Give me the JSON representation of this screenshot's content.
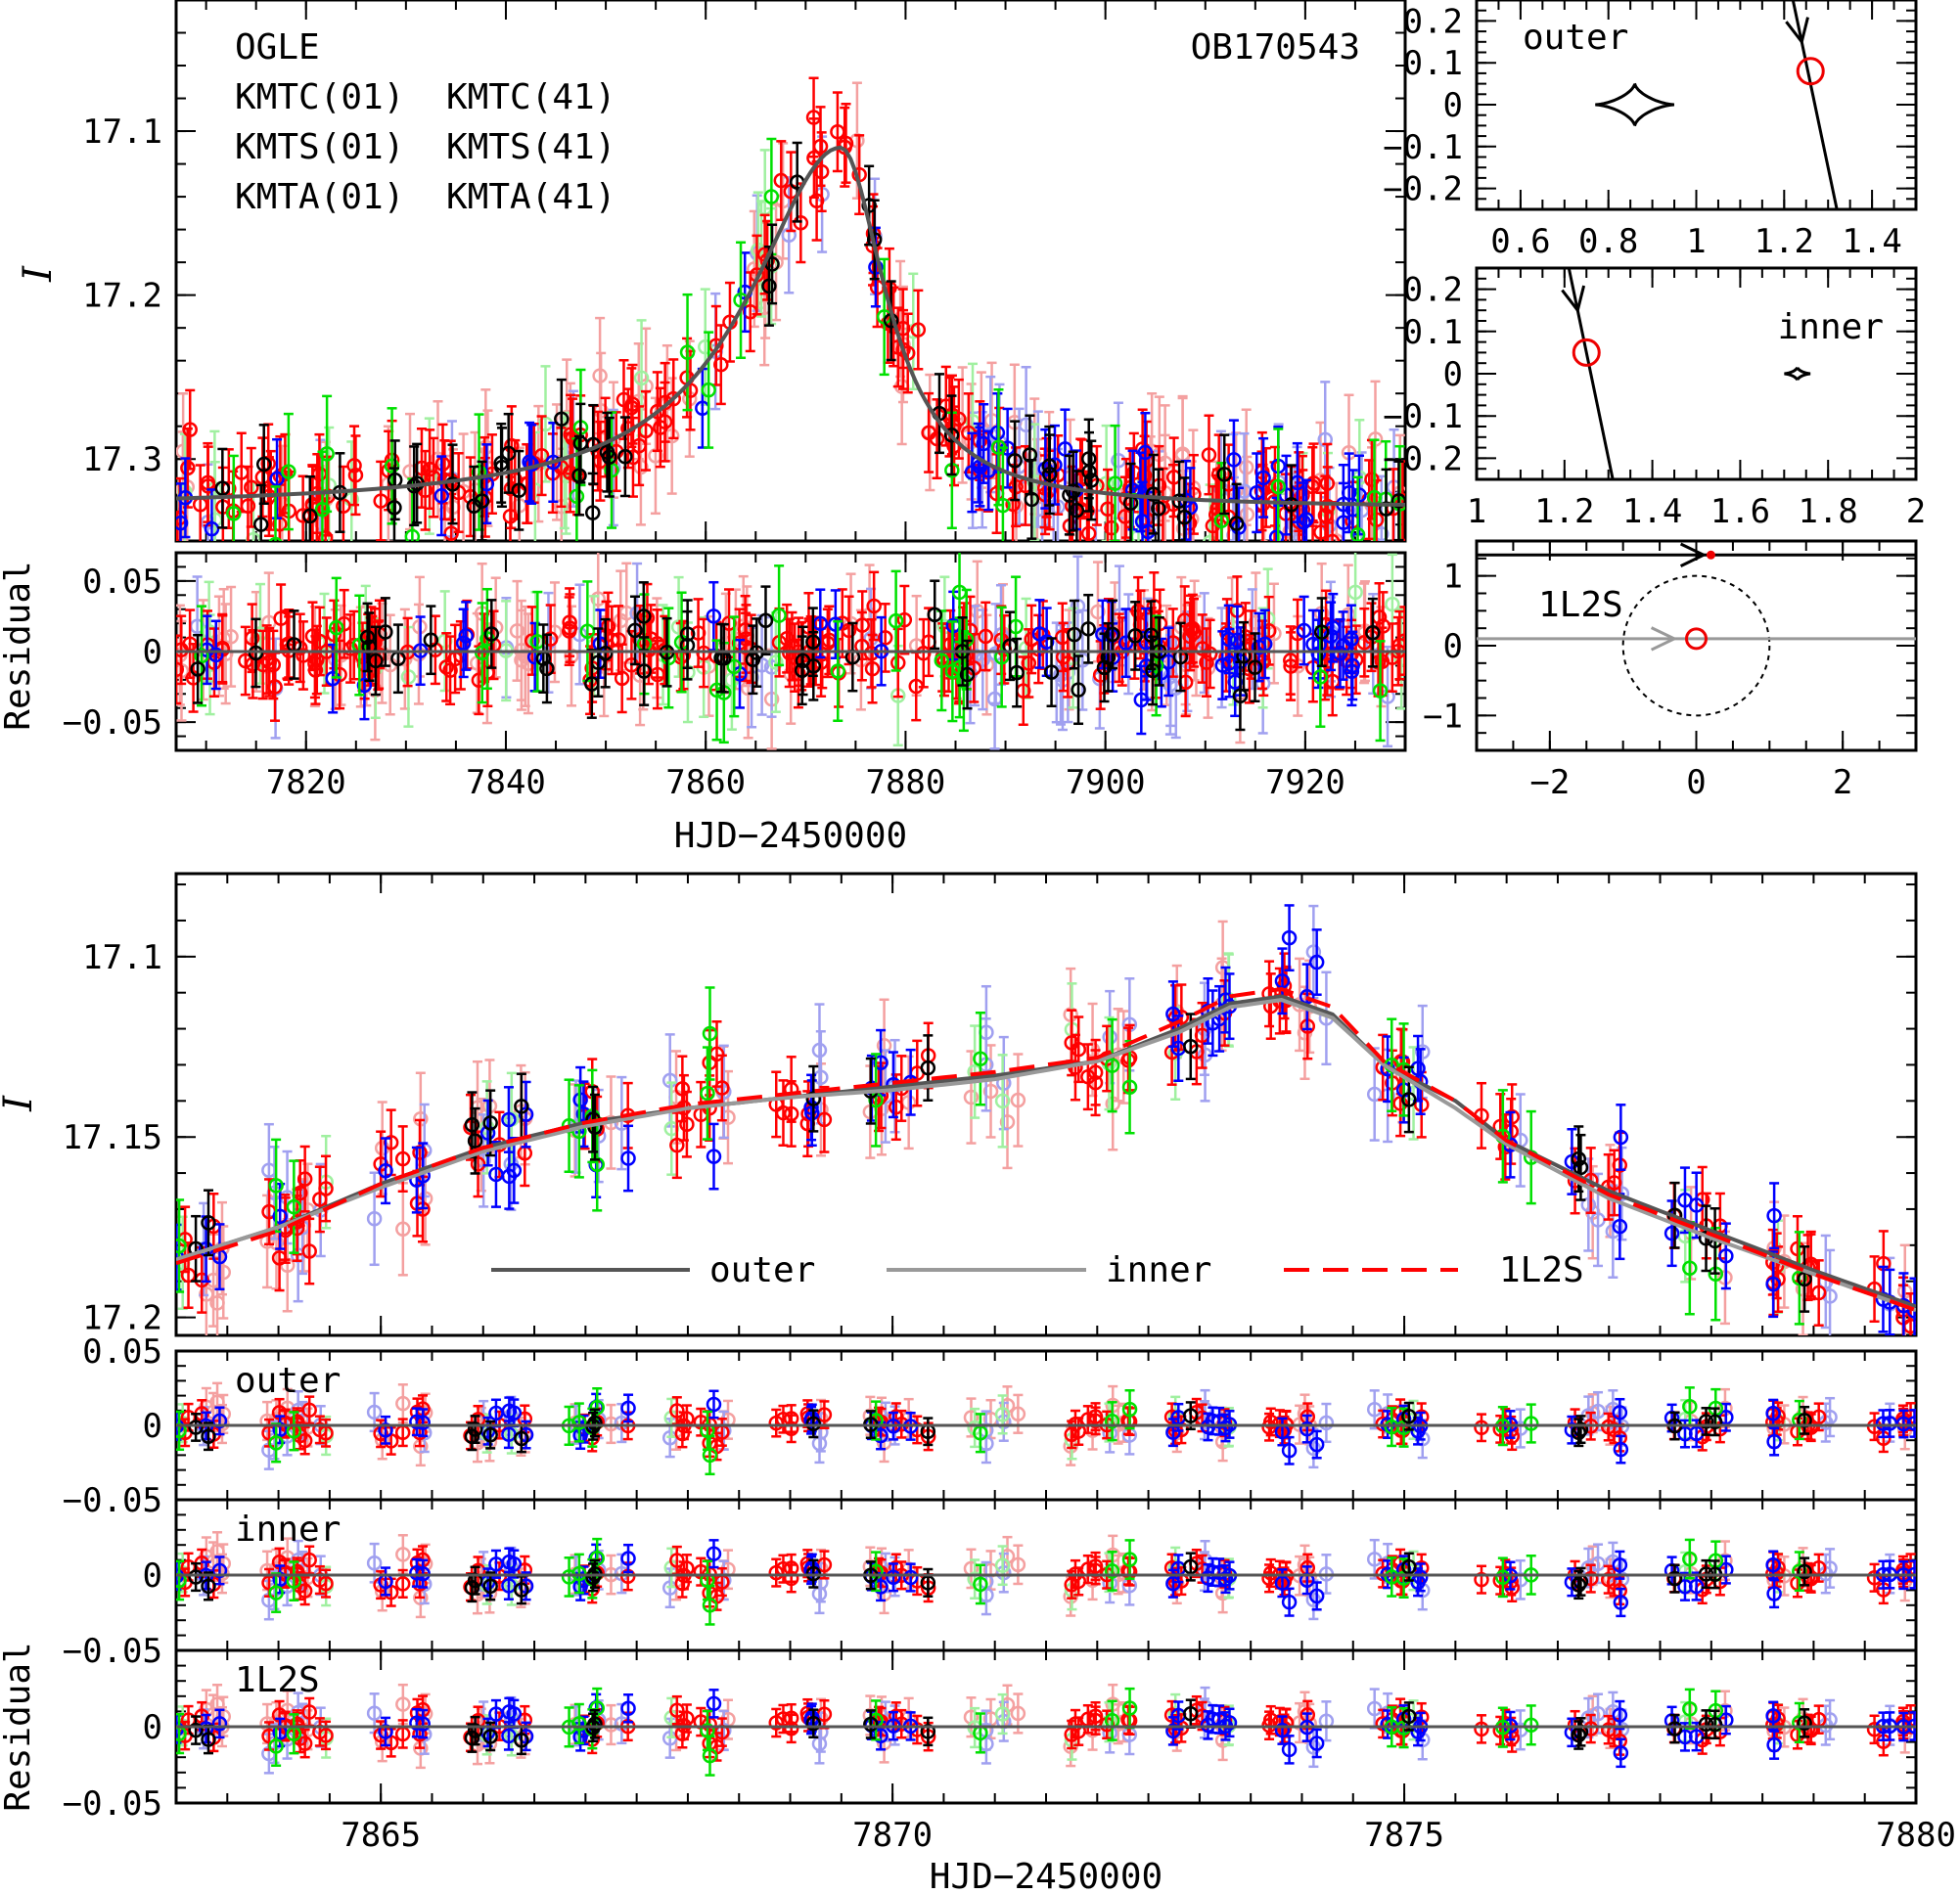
{
  "chart_data": [
    {
      "id": "top-lightcurve",
      "type": "scatter",
      "label": "OB170543",
      "ylabel": "I",
      "xlim": [
        7807,
        7930
      ],
      "ylim": [
        17.35,
        17.02
      ],
      "xticks": [
        7820,
        7840,
        7860,
        7880,
        7900,
        7920
      ],
      "yticks": [
        17.1,
        17.2,
        17.3
      ],
      "legend": [
        "OGLE",
        "KMTC(01)",
        "KMTC(41)",
        "KMTS(01)",
        "KMTS(41)",
        "KMTA(01)",
        "KMTA(41)"
      ],
      "model": {
        "t0": 7873.5,
        "peak": 17.11,
        "base": 17.33,
        "tE_rise": 14,
        "tE_fall": 7
      }
    },
    {
      "id": "top-residual",
      "type": "scatter",
      "ylabel": "Residual",
      "xlabel": "HJD−2450000",
      "xlim": [
        7807,
        7930
      ],
      "ylim": [
        -0.07,
        0.07
      ],
      "xticks": [
        7820,
        7840,
        7860,
        7880,
        7900,
        7920
      ],
      "yticks": [
        0.05,
        0,
        -0.05
      ]
    },
    {
      "id": "caustic-outer",
      "type": "line",
      "label": "outer",
      "xlim": [
        0.5,
        1.5
      ],
      "ylim": [
        -0.25,
        0.25
      ],
      "xticks": [
        0.6,
        0.8,
        1,
        1.2,
        1.4
      ],
      "yticks": [
        0.2,
        0.1,
        0,
        -0.1,
        -0.2
      ],
      "caustic_center": [
        0.86,
        0
      ],
      "source_position": [
        1.26,
        0.08
      ],
      "trajectory": [
        [
          1.22,
          0.25
        ],
        [
          1.32,
          -0.25
        ]
      ]
    },
    {
      "id": "caustic-inner",
      "type": "line",
      "label": "inner",
      "xlim": [
        1,
        2
      ],
      "ylim": [
        -0.25,
        0.25
      ],
      "xticks": [
        1,
        1.2,
        1.4,
        1.6,
        1.8,
        2
      ],
      "yticks": [
        0.2,
        0.1,
        0,
        -0.1,
        -0.2
      ],
      "caustic_center": [
        1.73,
        0
      ],
      "source_position": [
        1.25,
        0.05
      ],
      "trajectory": [
        [
          1.21,
          0.25
        ],
        [
          1.31,
          -0.25
        ]
      ]
    },
    {
      "id": "caustic-1l2s",
      "type": "line",
      "label": "1L2S",
      "xlim": [
        -3,
        3
      ],
      "ylim": [
        -1.5,
        1.5
      ],
      "xticks": [
        -2,
        0,
        2
      ],
      "yticks": [
        1,
        0,
        -1
      ],
      "einstein_ring_radius": 1,
      "source1": [
        0,
        0.1
      ],
      "source2": [
        0.2,
        1.3
      ]
    },
    {
      "id": "zoom-lightcurve",
      "type": "scatter",
      "ylabel": "I",
      "xlim": [
        7863,
        7880
      ],
      "ylim": [
        17.205,
        17.077
      ],
      "xticks": [
        7865,
        7870,
        7875,
        7880
      ],
      "yticks": [
        17.1,
        17.15,
        17.2
      ],
      "legend": [
        "outer",
        "inner",
        "1L2S"
      ],
      "models": [
        {
          "name": "outer",
          "x": [
            7863,
            7864,
            7865,
            7866,
            7867,
            7868,
            7869,
            7870,
            7871,
            7872,
            7872.8,
            7873.3,
            7873.8,
            7874.3,
            7874.8,
            7875.5,
            7876,
            7877,
            7878,
            7879,
            7880
          ],
          "y": [
            17.184,
            17.175,
            17.163,
            17.153,
            17.146,
            17.142,
            17.139,
            17.136,
            17.133,
            17.129,
            17.12,
            17.113,
            17.111,
            17.116,
            17.13,
            17.14,
            17.151,
            17.165,
            17.176,
            17.187,
            17.197
          ]
        },
        {
          "name": "inner",
          "x": [
            7863,
            7864,
            7865,
            7866,
            7867,
            7868,
            7869,
            7870,
            7871,
            7872,
            7872.8,
            7873.3,
            7873.8,
            7874.3,
            7874.8,
            7875.5,
            7876,
            7877,
            7878,
            7879,
            7880
          ],
          "y": [
            17.184,
            17.175,
            17.164,
            17.154,
            17.147,
            17.142,
            17.139,
            17.137,
            17.134,
            17.129,
            17.121,
            17.114,
            17.112,
            17.117,
            17.13,
            17.142,
            17.152,
            17.167,
            17.178,
            17.188,
            17.198
          ]
        },
        {
          "name": "1L2S",
          "x": [
            7863,
            7864,
            7865,
            7866,
            7867,
            7868,
            7869,
            7870,
            7871,
            7872,
            7872.8,
            7873.3,
            7873.8,
            7874.3,
            7874.8,
            7875.5,
            7876,
            7877,
            7878,
            7879,
            7880
          ],
          "y": [
            17.185,
            17.176,
            17.163,
            17.153,
            17.146,
            17.141,
            17.138,
            17.135,
            17.132,
            17.128,
            17.118,
            17.111,
            17.109,
            17.114,
            17.129,
            17.14,
            17.151,
            17.166,
            17.177,
            17.188,
            17.198
          ]
        }
      ]
    },
    {
      "id": "zoom-residual-outer",
      "type": "scatter",
      "label": "outer",
      "xlim": [
        7863,
        7880
      ],
      "ylim": [
        -0.05,
        0.05
      ],
      "yticks": [
        0.05,
        0,
        -0.05
      ]
    },
    {
      "id": "zoom-residual-inner",
      "type": "scatter",
      "label": "inner",
      "xlim": [
        7863,
        7880
      ],
      "ylim": [
        -0.05,
        0.05
      ],
      "yticks": [
        0,
        -0.05
      ]
    },
    {
      "id": "zoom-residual-1l2s",
      "type": "scatter",
      "label": "1L2S",
      "ylabel": "Residual",
      "xlabel": "HJD−2450000",
      "xlim": [
        7863,
        7880
      ],
      "ylim": [
        -0.05,
        0.05
      ],
      "xticks": [
        7865,
        7870,
        7875,
        7880
      ],
      "yticks": [
        0,
        -0.05
      ]
    }
  ],
  "colors": {
    "OGLE": "#000000",
    "KMTC(01)": "#ff0000",
    "KMTC(41)": "#f4a0a0",
    "KMTS(01)": "#0000ff",
    "KMTS(41)": "#a0a0f0",
    "KMTA(01)": "#00e000",
    "KMTA(41)": "#a0f0a0",
    "outer": "#555555",
    "inner": "#999999",
    "1L2S": "#ff0000"
  }
}
